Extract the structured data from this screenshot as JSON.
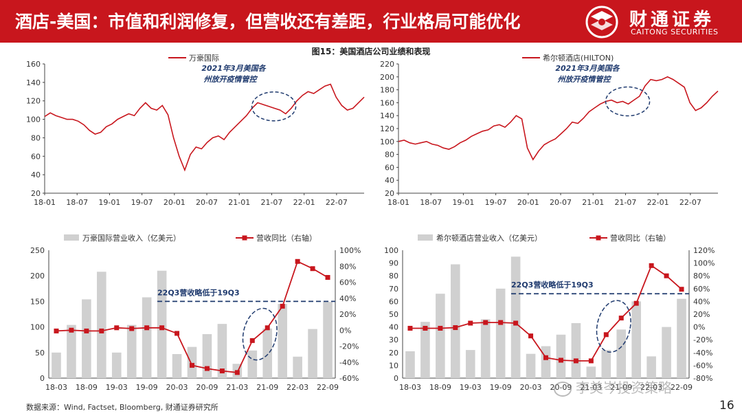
{
  "header": {
    "title": "酒店-美国：市值和利润修复，但营收还有差距，行业格局可能优化",
    "brand_cn": "财通证券",
    "brand_en": "CAITONG SECURITIES",
    "bg_color": "#c8161d"
  },
  "figure_title": "图15：美国酒店公司业绩和表现",
  "source": "数据来源：Wind, Factset, Bloomberg, 财通证券研究所",
  "page_number": "16",
  "watermark": "李美岑投资策略",
  "chart_data": [
    {
      "type": "line",
      "legend": "万豪国际",
      "color": "#c8161d",
      "annotation": [
        "2021年3月美国各",
        "州放开疫情管控"
      ],
      "x_ticks": [
        "18-01",
        "18-07",
        "19-01",
        "19-07",
        "20-01",
        "20-07",
        "21-01",
        "21-07",
        "22-01",
        "22-07"
      ],
      "ylim": [
        20,
        160
      ],
      "y_ticks": [
        20,
        40,
        60,
        80,
        100,
        120,
        140,
        160
      ],
      "x": [
        0,
        1,
        2,
        3,
        4,
        5,
        6,
        7,
        8,
        9,
        10,
        11,
        12,
        13,
        14,
        15,
        16,
        17,
        18,
        19,
        20,
        21,
        22,
        23,
        24,
        25,
        26,
        27,
        28,
        29,
        30,
        31,
        32,
        33,
        34,
        35,
        36,
        37,
        38,
        39,
        40,
        41,
        42,
        43,
        44,
        45,
        46,
        47,
        48,
        49,
        50,
        51,
        52,
        53,
        54,
        55,
        56,
        57
      ],
      "values": [
        103,
        107,
        104,
        102,
        100,
        100,
        98,
        94,
        88,
        84,
        86,
        92,
        95,
        100,
        103,
        106,
        104,
        112,
        118,
        112,
        110,
        115,
        105,
        80,
        60,
        45,
        62,
        70,
        68,
        75,
        80,
        82,
        78,
        86,
        92,
        98,
        104,
        112,
        118,
        116,
        114,
        112,
        110,
        106,
        112,
        120,
        126,
        130,
        128,
        132,
        136,
        138,
        124,
        115,
        110,
        112,
        118,
        124
      ]
    },
    {
      "type": "line",
      "legend": "希尔顿酒店(HILTON)",
      "color": "#c8161d",
      "annotation": [
        "2021年3月美国各",
        "州放开疫情管控"
      ],
      "x_ticks": [
        "18-01",
        "18-07",
        "19-01",
        "19-07",
        "20-01",
        "20-07",
        "21-01",
        "21-07",
        "22-01",
        "22-07"
      ],
      "ylim": [
        20,
        220
      ],
      "y_ticks": [
        20,
        40,
        60,
        80,
        100,
        120,
        140,
        160,
        180,
        200,
        220
      ],
      "x": [
        0,
        1,
        2,
        3,
        4,
        5,
        6,
        7,
        8,
        9,
        10,
        11,
        12,
        13,
        14,
        15,
        16,
        17,
        18,
        19,
        20,
        21,
        22,
        23,
        24,
        25,
        26,
        27,
        28,
        29,
        30,
        31,
        32,
        33,
        34,
        35,
        36,
        37,
        38,
        39,
        40,
        41,
        42,
        43,
        44,
        45,
        46,
        47,
        48,
        49,
        50,
        51,
        52,
        53,
        54,
        55,
        56,
        57
      ],
      "values": [
        100,
        102,
        98,
        96,
        98,
        100,
        96,
        94,
        90,
        88,
        92,
        98,
        102,
        108,
        112,
        116,
        118,
        124,
        126,
        122,
        130,
        140,
        135,
        90,
        72,
        85,
        95,
        100,
        104,
        112,
        120,
        130,
        128,
        136,
        146,
        152,
        158,
        162,
        164,
        160,
        162,
        158,
        164,
        170,
        186,
        196,
        194,
        196,
        200,
        196,
        190,
        184,
        160,
        148,
        152,
        160,
        170,
        178
      ]
    },
    {
      "type": "bar+line",
      "legend": [
        "万豪国际营业收入（亿美元）",
        "营收同比（右轴）"
      ],
      "bar_color": "#d0d0d0",
      "line_color": "#c8161d",
      "categories": [
        "18-03",
        "18-06",
        "18-09",
        "18-12",
        "19-03",
        "19-06",
        "19-09",
        "19-12",
        "20-03",
        "20-06",
        "20-09",
        "20-12",
        "21-03",
        "21-06",
        "21-09",
        "21-12",
        "22-03",
        "22-06",
        "22-09"
      ],
      "x_ticks": [
        "18-03",
        "18-09",
        "19-03",
        "19-09",
        "20-03",
        "20-09",
        "21-03",
        "21-09",
        "22-03",
        "22-09"
      ],
      "bar_values": [
        50,
        104,
        154,
        208,
        50,
        104,
        158,
        210,
        47,
        61,
        86,
        106,
        28,
        54,
        97,
        145,
        42,
        96,
        149
      ],
      "line_values": [
        -1,
        0,
        -1,
        -1,
        3,
        2,
        3,
        3,
        -4,
        -44,
        -48,
        -51,
        -53,
        -13,
        3,
        30,
        86,
        77,
        66
      ],
      "ylim_left": [
        0,
        250
      ],
      "y_ticks_left": [
        0,
        50,
        100,
        150,
        200,
        250
      ],
      "ylim_right": [
        -60,
        100
      ],
      "y_ticks_right": [
        "-60%",
        "-40%",
        "-20%",
        "0%",
        "20%",
        "40%",
        "60%",
        "80%",
        "100%"
      ],
      "dashed_label": "22Q3营收略低于19Q3",
      "dashed_value": 150
    },
    {
      "type": "bar+line",
      "legend": [
        "希尔顿酒店营业收入（亿美元）",
        "营收同比（右轴）"
      ],
      "bar_color": "#d0d0d0",
      "line_color": "#c8161d",
      "categories": [
        "18-03",
        "18-06",
        "18-09",
        "18-12",
        "19-03",
        "19-06",
        "19-09",
        "19-12",
        "20-03",
        "20-06",
        "20-09",
        "20-12",
        "21-03",
        "21-06",
        "21-09",
        "21-12",
        "22-03",
        "22-06",
        "22-09"
      ],
      "x_ticks": [
        "18-03",
        "18-09",
        "19-03",
        "19-09",
        "20-03",
        "20-09",
        "21-03",
        "21-09",
        "22-03",
        "22-09"
      ],
      "bar_values": [
        21,
        44,
        66,
        89,
        22,
        46,
        70,
        95,
        19,
        25,
        34,
        43,
        9,
        22,
        38,
        60,
        17,
        40,
        62
      ],
      "line_values": [
        -2,
        -2,
        -2,
        -1,
        6,
        7,
        7,
        6,
        -14,
        -48,
        -52,
        -53,
        -53,
        -12,
        14,
        37,
        96,
        80,
        59
      ],
      "ylim_left": [
        0,
        100
      ],
      "y_ticks_left": [
        0,
        10,
        20,
        30,
        40,
        50,
        60,
        70,
        80,
        90,
        100
      ],
      "ylim_right": [
        -80,
        120
      ],
      "y_ticks_right": [
        "-80%",
        "-60%",
        "-40%",
        "-20%",
        "0%",
        "20%",
        "40%",
        "60%",
        "80%",
        "100%",
        "120%"
      ],
      "dashed_label": "22Q3营收略低于19Q3",
      "dashed_value": 66
    }
  ]
}
